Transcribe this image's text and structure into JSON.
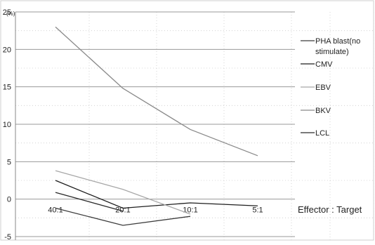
{
  "chart_data": {
    "type": "line",
    "unit_label": "(%)",
    "categories": [
      "40:1",
      "20:1",
      "10:1",
      "5:1"
    ],
    "xlabel": "Effector : Target",
    "ylabel": "",
    "ylim": [
      -5,
      25
    ],
    "yticks": [
      -5,
      0,
      5,
      10,
      15,
      20,
      25
    ],
    "grid": true,
    "legend_position": "right",
    "series": [
      {
        "name": "PHA blast(no stimulate)",
        "values": [
          -1.2,
          -3.5,
          -2.3,
          null
        ],
        "color": "#3c3c3c"
      },
      {
        "name": "CMV",
        "values": [
          2.5,
          -1.2,
          -0.5,
          -0.9
        ],
        "color": "#1e1e1e"
      },
      {
        "name": "EBV",
        "values": [
          3.8,
          1.3,
          -2.0,
          null
        ],
        "color": "#a8a8a8"
      },
      {
        "name": "BKV",
        "values": [
          23.0,
          14.8,
          9.3,
          5.8
        ],
        "color": "#8a8a8a"
      },
      {
        "name": "LCL",
        "values": [
          0.9,
          -1.6,
          null,
          null
        ],
        "color": "#2a2a2a"
      }
    ]
  }
}
